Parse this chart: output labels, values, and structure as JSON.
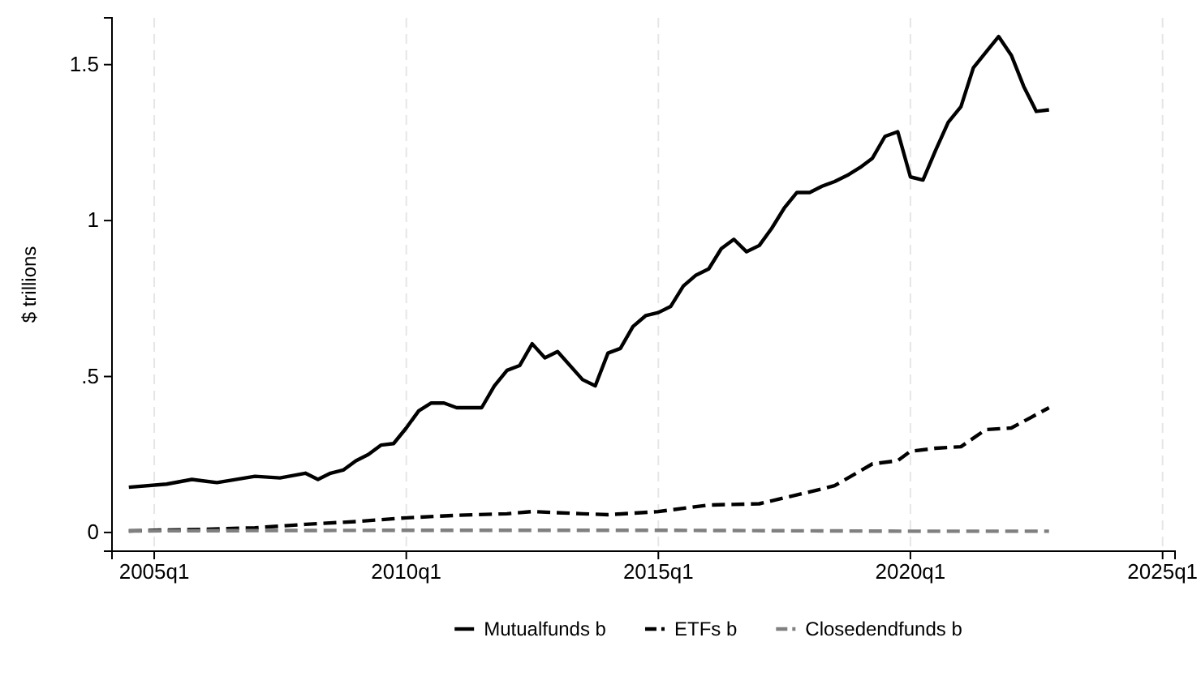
{
  "chart_data": {
    "type": "line",
    "ylabel": "$ trillions",
    "xlim": [
      "2004-03",
      "2025-04"
    ],
    "ylim": [
      -0.06,
      1.65
    ],
    "xticks": [
      {
        "value": "2005-01",
        "label": "2005q1"
      },
      {
        "value": "2010-01",
        "label": "2010q1"
      },
      {
        "value": "2015-01",
        "label": "2015q1"
      },
      {
        "value": "2020-01",
        "label": "2020q1"
      },
      {
        "value": "2025-01",
        "label": "2025q1"
      }
    ],
    "yticks": [
      0,
      {
        "value": 0.5,
        "label": ".5"
      },
      1,
      1.5
    ],
    "grid": "x",
    "legend": "bottom",
    "marker": "none",
    "series": [
      {
        "name": "Mutualfunds b",
        "color": "#000000",
        "line_style": "solid",
        "x": [
          "2004-07",
          "2005-04",
          "2005-10",
          "2006-04",
          "2007-01",
          "2007-07",
          "2008-01",
          "2008-04",
          "2008-07",
          "2008-10",
          "2009-01",
          "2009-04",
          "2009-07",
          "2009-10",
          "2010-01",
          "2010-04",
          "2010-07",
          "2010-10",
          "2011-01",
          "2011-07",
          "2011-10",
          "2012-01",
          "2012-04",
          "2012-07",
          "2012-10",
          "2013-01",
          "2013-07",
          "2013-10",
          "2014-01",
          "2014-04",
          "2014-07",
          "2014-10",
          "2015-01",
          "2015-04",
          "2015-07",
          "2015-10",
          "2016-01",
          "2016-04",
          "2016-07",
          "2016-10",
          "2017-01",
          "2017-04",
          "2017-07",
          "2017-10",
          "2018-01",
          "2018-04",
          "2018-07",
          "2018-10",
          "2019-01",
          "2019-04",
          "2019-07",
          "2019-10",
          "2020-01",
          "2020-04",
          "2020-07",
          "2020-10",
          "2021-01",
          "2021-04",
          "2021-07",
          "2021-10",
          "2022-01",
          "2022-04",
          "2022-07",
          "2022-10"
        ],
        "values": [
          0.145,
          0.155,
          0.17,
          0.16,
          0.18,
          0.175,
          0.19,
          0.17,
          0.19,
          0.2,
          0.23,
          0.25,
          0.28,
          0.285,
          0.335,
          0.39,
          0.415,
          0.415,
          0.4,
          0.4,
          0.47,
          0.52,
          0.535,
          0.605,
          0.56,
          0.58,
          0.49,
          0.47,
          0.575,
          0.59,
          0.66,
          0.695,
          0.705,
          0.725,
          0.79,
          0.825,
          0.845,
          0.91,
          0.94,
          0.9,
          0.92,
          0.975,
          1.04,
          1.09,
          1.09,
          1.11,
          1.125,
          1.145,
          1.17,
          1.2,
          1.27,
          1.285,
          1.14,
          1.13,
          1.225,
          1.315,
          1.365,
          1.49,
          1.54,
          1.59,
          1.53,
          1.43,
          1.35,
          1.355
        ]
      },
      {
        "name": "ETFs b",
        "color": "#000000",
        "line_style": "dashed",
        "x": [
          "2004-07",
          "2005-01",
          "2006-01",
          "2007-01",
          "2008-01",
          "2009-01",
          "2010-01",
          "2011-01",
          "2012-01",
          "2012-07",
          "2013-07",
          "2014-01",
          "2015-01",
          "2016-01",
          "2017-01",
          "2018-01",
          "2018-07",
          "2019-04",
          "2019-10",
          "2020-01",
          "2020-07",
          "2021-01",
          "2021-07",
          "2022-01",
          "2022-10"
        ],
        "values": [
          0.005,
          0.007,
          0.01,
          0.015,
          0.026,
          0.035,
          0.047,
          0.055,
          0.06,
          0.067,
          0.06,
          0.057,
          0.067,
          0.088,
          0.092,
          0.13,
          0.15,
          0.22,
          0.23,
          0.26,
          0.27,
          0.275,
          0.33,
          0.335,
          0.4
        ]
      },
      {
        "name": "Closedendfunds b",
        "color": "#808080",
        "line_style": "dashed",
        "x": [
          "2004-07",
          "2010-01",
          "2015-01",
          "2020-01",
          "2022-10"
        ],
        "values": [
          0.005,
          0.007,
          0.007,
          0.004,
          0.004
        ]
      }
    ]
  }
}
